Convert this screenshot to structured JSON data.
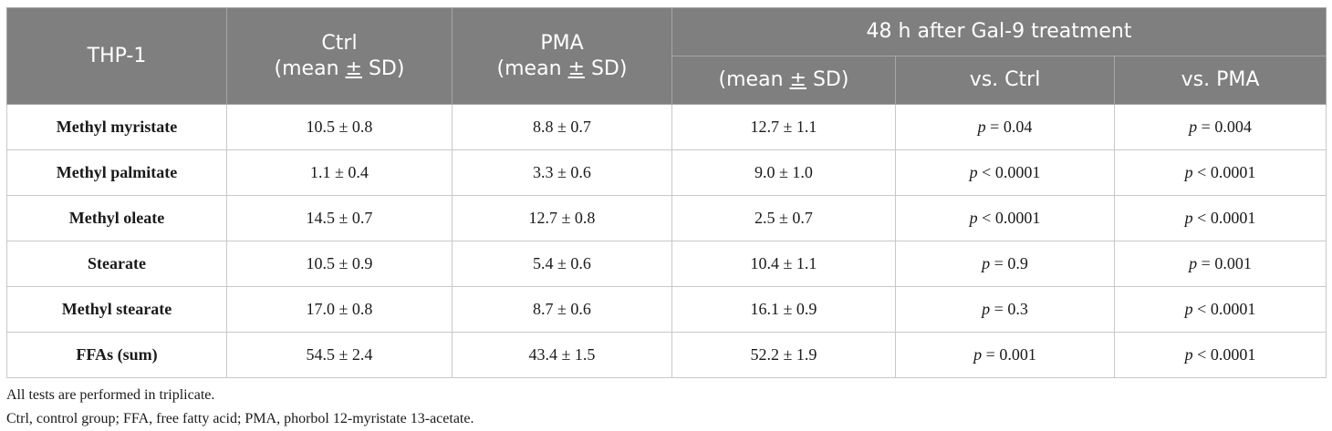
{
  "table": {
    "header": {
      "row_label": "THP-1",
      "ctrl": "Ctrl",
      "ctrl_sub_prefix": "(mean ",
      "ctrl_sub_pm": "±",
      "ctrl_sub_suffix": " SD)",
      "pma": "PMA",
      "pma_sub_prefix": "(mean ",
      "pma_sub_pm": "±",
      "pma_sub_suffix": " SD)",
      "gal9_group": "48 h after Gal-9 treatment",
      "gal9_mean_prefix": "(mean ",
      "gal9_mean_pm": "±",
      "gal9_mean_suffix": " SD)",
      "vs_ctrl": "vs. Ctrl",
      "vs_pma": "vs. PMA"
    },
    "rows": [
      {
        "label": "Methyl myristate",
        "ctrl": "10.5 ± 0.8",
        "pma": "8.8 ± 0.7",
        "gal9": "12.7 ± 1.1",
        "vs_ctrl_p": "p",
        "vs_ctrl_val": " = 0.04",
        "vs_pma_p": "p",
        "vs_pma_val": " = 0.004"
      },
      {
        "label": "Methyl palmitate",
        "ctrl": "1.1 ± 0.4",
        "pma": "3.3 ± 0.6",
        "gal9": "9.0 ± 1.0",
        "vs_ctrl_p": "p",
        "vs_ctrl_val": " < 0.0001",
        "vs_pma_p": "p",
        "vs_pma_val": " < 0.0001"
      },
      {
        "label": "Methyl oleate",
        "ctrl": "14.5 ± 0.7",
        "pma": "12.7 ± 0.8",
        "gal9": "2.5 ± 0.7",
        "vs_ctrl_p": "p",
        "vs_ctrl_val": " < 0.0001",
        "vs_pma_p": "p",
        "vs_pma_val": " < 0.0001"
      },
      {
        "label": "Stearate",
        "ctrl": "10.5 ± 0.9",
        "pma": "5.4 ± 0.6",
        "gal9": "10.4 ± 1.1",
        "vs_ctrl_p": "p",
        "vs_ctrl_val": " = 0.9",
        "vs_pma_p": "p",
        "vs_pma_val": " = 0.001"
      },
      {
        "label": "Methyl stearate",
        "ctrl": "17.0 ± 0.8",
        "pma": "8.7 ± 0.6",
        "gal9": "16.1 ± 0.9",
        "vs_ctrl_p": "p",
        "vs_ctrl_val": " = 0.3",
        "vs_pma_p": "p",
        "vs_pma_val": " < 0.0001"
      },
      {
        "label": "FFAs (sum)",
        "ctrl": "54.5 ± 2.4",
        "pma": "43.4 ± 1.5",
        "gal9": "52.2 ± 1.9",
        "vs_ctrl_p": "p",
        "vs_ctrl_val": " = 0.001",
        "vs_pma_p": "p",
        "vs_pma_val": " < 0.0001"
      }
    ]
  },
  "footnotes": [
    "All tests are performed in triplicate.",
    "Ctrl, control group; FFA, free fatty acid; PMA, phorbol 12-myristate 13-acetate."
  ]
}
